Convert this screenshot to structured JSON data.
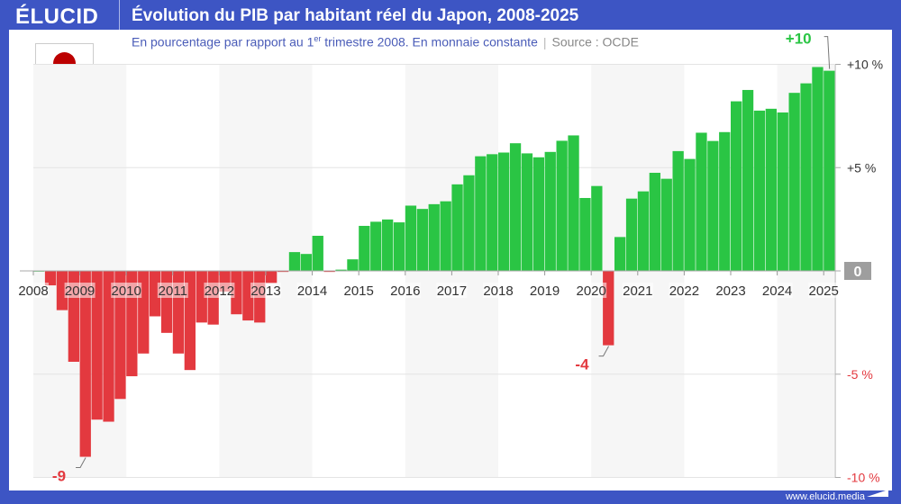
{
  "header": {
    "logo": "ÉLUCID",
    "title": "Évolution du PIB par habitant réel du Japon, 2008-2025"
  },
  "subtitle": {
    "main": "En pourcentage par rapport au 1",
    "sup": "er",
    "rest": " trimestre 2008. En monnaie constante",
    "source": "Source : OCDE"
  },
  "flag": "japan-flag",
  "footer": {
    "url": "www.elucid.media"
  },
  "colors": {
    "frame": "#3d55c4",
    "positive": "#2ac544",
    "negative": "#e3393f",
    "zero_box": "#9e9e9e"
  },
  "chart_data": {
    "type": "bar",
    "title": "Évolution du PIB par habitant réel du Japon, 2008-2025",
    "frequency": "quarterly",
    "start": "2008 T1",
    "x_ticks": [
      "2008",
      "2009",
      "2010",
      "2011",
      "2012",
      "2013",
      "2014",
      "2015",
      "2016",
      "2017",
      "2018",
      "2019",
      "2020",
      "2021",
      "2022",
      "2023",
      "2024",
      "2025"
    ],
    "y_ticks": [
      {
        "v": 10,
        "label": "+10 %"
      },
      {
        "v": 5,
        "label": "+5 %"
      },
      {
        "v": 0,
        "label": "0"
      },
      {
        "v": -5,
        "label": "-5 %"
      },
      {
        "v": -10,
        "label": "-10 %"
      }
    ],
    "ylim": [
      -10,
      10
    ],
    "values": [
      0,
      -0.7,
      -1.9,
      -4.4,
      -9.0,
      -7.2,
      -7.3,
      -6.2,
      -5.1,
      -4.0,
      -2.2,
      -3.0,
      -4.0,
      -4.8,
      -2.5,
      -2.6,
      -1.0,
      -2.1,
      -2.4,
      -2.5,
      -0.6,
      -0.05,
      0.91,
      0.82,
      1.7,
      -0.05,
      0.06,
      0.56,
      2.18,
      2.38,
      2.49,
      2.35,
      3.16,
      3.0,
      3.23,
      3.37,
      4.19,
      4.63,
      5.55,
      5.65,
      5.73,
      6.18,
      5.69,
      5.5,
      5.76,
      6.3,
      6.56,
      3.53,
      4.11,
      -3.6,
      1.64,
      3.5,
      3.85,
      4.75,
      4.46,
      5.8,
      5.42,
      6.69,
      6.29,
      6.72,
      8.21,
      8.76,
      7.76,
      7.85,
      7.67,
      8.62,
      9.08,
      9.87,
      9.69
    ],
    "annotations": [
      {
        "index": 4,
        "label": "-9"
      },
      {
        "index": 49,
        "label": "-4"
      },
      {
        "index": 68,
        "label": "+10"
      }
    ],
    "grid": true,
    "alternating_year_bands": true
  }
}
